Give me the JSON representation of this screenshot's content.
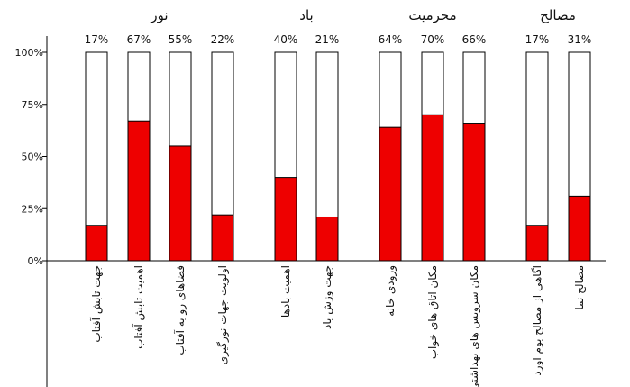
{
  "chart_data": {
    "type": "bar",
    "groups": [
      {
        "name": "نور",
        "categories": [
          "جهت تابش آفتاب",
          "اهمیت تابش آفتاب",
          "فضاهای رو به آفتاب",
          "اولویت جهات نورگیری"
        ],
        "values": [
          17,
          67,
          55,
          22
        ]
      },
      {
        "name": "باد",
        "categories": [
          "اهمیت بادها",
          "جهت وزش باد"
        ],
        "values": [
          40,
          21
        ]
      },
      {
        "name": "محرمیت",
        "categories": [
          "ورودی خانه",
          "مکان اتاق های خواب",
          "مکان سرویس های بهداشتی"
        ],
        "values": [
          64,
          70,
          66
        ]
      },
      {
        "name": "مصالح",
        "categories": [
          "اگاهی از مصالح بوم اورد",
          "مصالح نما"
        ],
        "values": [
          17,
          31
        ]
      }
    ],
    "value_labels": [
      "17%",
      "67%",
      "55%",
      "22%",
      "40%",
      "21%",
      "64%",
      "70%",
      "66%",
      "17%",
      "31%"
    ],
    "yticks": [
      "0%",
      "25%",
      "50%",
      "75%",
      "100%"
    ],
    "ylim": [
      0,
      100
    ],
    "grid": false,
    "bar_color": "#ee0000",
    "bar_background": "#ffffff"
  }
}
